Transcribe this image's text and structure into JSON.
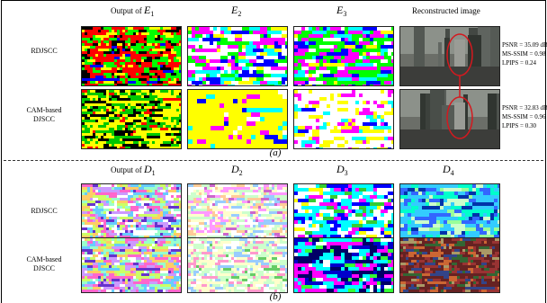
{
  "part_a": {
    "headers": {
      "col1_prefix": "Output of ",
      "col1_symbol": "E",
      "col1_sub": "1",
      "col2_symbol": "E",
      "col2_sub": "2",
      "col3_symbol": "E",
      "col3_sub": "3",
      "col4": "Reconstructed image"
    },
    "rows": [
      {
        "label_line1": "RDJSCC",
        "label_line2": "",
        "psnr": "PSNR = 35.09 dB",
        "msssim": "MS-SSIM = 0.98",
        "lpips": "LPIPS = 0.24"
      },
      {
        "label_line1": "CAM-based",
        "label_line2": "DJSCC",
        "psnr": "PSNR = 32.83 dB",
        "msssim": "MS-SSIM = 0.96",
        "lpips": "LPIPS = 0.30"
      }
    ],
    "caption": "(a)"
  },
  "part_b": {
    "headers": {
      "col1_prefix": "Output of ",
      "col1_symbol": "D",
      "col1_sub": "1",
      "col2_symbol": "D",
      "col2_sub": "2",
      "col3_symbol": "D",
      "col3_sub": "3",
      "col4_symbol": "D",
      "col4_sub": "4"
    },
    "rows": [
      {
        "label_line1": "RDJSCC",
        "label_line2": ""
      },
      {
        "label_line1": "CAM-based",
        "label_line2": "DJSCC"
      }
    ],
    "caption": "(b)"
  },
  "colors": {
    "highlight_circle": "#d4191f",
    "feature_palette": [
      "#ff0000",
      "#00ff00",
      "#ffff00",
      "#0000ff",
      "#ff00ff",
      "#00ffff",
      "#ffffff",
      "#000000",
      "#8a2be2",
      "#ff8800"
    ]
  }
}
